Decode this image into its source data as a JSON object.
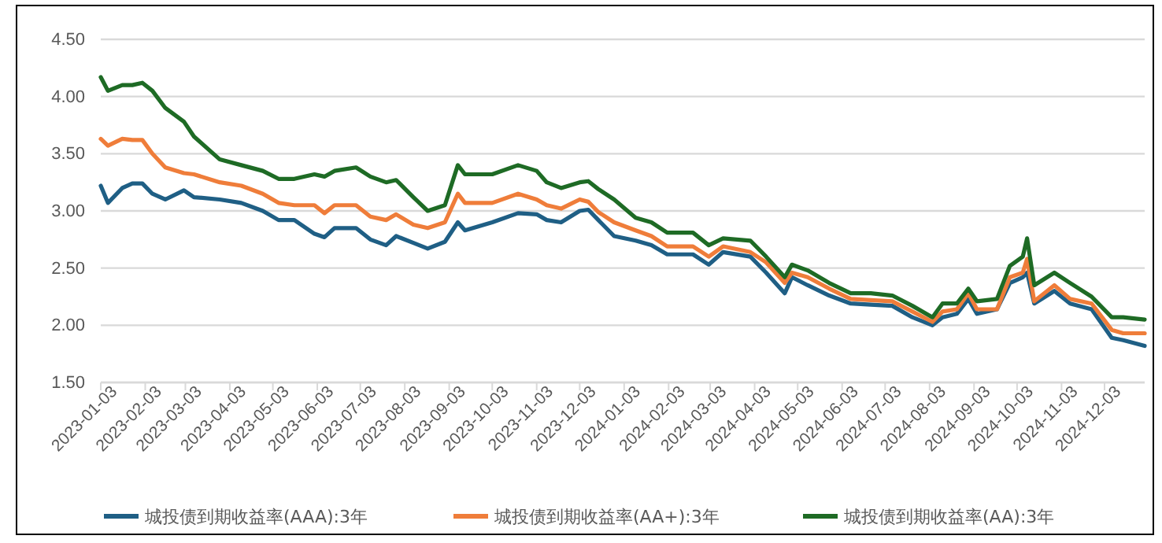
{
  "chart_data": {
    "type": "line",
    "x": [
      "2023-01-03",
      "2023-01-08",
      "2023-01-18",
      "2023-01-25",
      "2023-02-01",
      "2023-02-08",
      "2023-02-17",
      "2023-03-02",
      "2023-03-09",
      "2023-03-27",
      "2023-04-11",
      "2023-04-26",
      "2023-05-07",
      "2023-05-18",
      "2023-06-01",
      "2023-06-08",
      "2023-06-15",
      "2023-06-30",
      "2023-07-10",
      "2023-07-21",
      "2023-07-28",
      "2023-08-09",
      "2023-08-19",
      "2023-08-31",
      "2023-09-09",
      "2023-09-14",
      "2023-10-03",
      "2023-10-21",
      "2023-11-03",
      "2023-11-10",
      "2023-11-20",
      "2023-12-03",
      "2023-12-09",
      "2023-12-16",
      "2023-12-27",
      "2024-01-11",
      "2024-01-22",
      "2024-02-02",
      "2024-02-20",
      "2024-03-02",
      "2024-03-12",
      "2024-03-31",
      "2024-04-11",
      "2024-04-24",
      "2024-04-29",
      "2024-05-10",
      "2024-05-25",
      "2024-06-09",
      "2024-06-23",
      "2024-07-08",
      "2024-07-22",
      "2024-08-05",
      "2024-08-12",
      "2024-08-22",
      "2024-08-30",
      "2024-09-05",
      "2024-09-19",
      "2024-09-28",
      "2024-10-07",
      "2024-10-10",
      "2024-10-15",
      "2024-10-29",
      "2024-11-09",
      "2024-11-24",
      "2024-12-08",
      "2024-12-16",
      "2024-12-31"
    ],
    "series": [
      {
        "name": "城投债到期收益率(AAA):3年",
        "color": "#1f5f85",
        "values": [
          3.22,
          3.07,
          3.2,
          3.24,
          3.24,
          3.15,
          3.1,
          3.18,
          3.12,
          3.1,
          3.07,
          3.0,
          2.92,
          2.92,
          2.8,
          2.77,
          2.85,
          2.85,
          2.75,
          2.7,
          2.78,
          2.72,
          2.67,
          2.73,
          2.9,
          2.83,
          2.9,
          2.98,
          2.97,
          2.92,
          2.9,
          3.0,
          3.01,
          2.92,
          2.78,
          2.74,
          2.7,
          2.62,
          2.62,
          2.53,
          2.64,
          2.6,
          2.46,
          2.28,
          2.42,
          2.35,
          2.26,
          2.19,
          2.18,
          2.17,
          2.07,
          2.0,
          2.07,
          2.1,
          2.23,
          2.1,
          2.14,
          2.37,
          2.42,
          2.46,
          2.19,
          2.3,
          2.19,
          2.14,
          1.89,
          1.87,
          1.82
        ]
      },
      {
        "name": "城投债到期收益率(AA+):3年",
        "color": "#ef7d3a",
        "values": [
          3.63,
          3.57,
          3.63,
          3.62,
          3.62,
          3.5,
          3.38,
          3.33,
          3.32,
          3.25,
          3.22,
          3.15,
          3.07,
          3.05,
          3.05,
          2.98,
          3.05,
          3.05,
          2.95,
          2.92,
          2.97,
          2.88,
          2.85,
          2.9,
          3.15,
          3.07,
          3.07,
          3.15,
          3.1,
          3.05,
          3.02,
          3.1,
          3.08,
          2.99,
          2.9,
          2.83,
          2.78,
          2.69,
          2.69,
          2.6,
          2.69,
          2.64,
          2.55,
          2.37,
          2.46,
          2.42,
          2.32,
          2.23,
          2.22,
          2.21,
          2.12,
          2.03,
          2.12,
          2.14,
          2.28,
          2.14,
          2.14,
          2.42,
          2.46,
          2.58,
          2.21,
          2.35,
          2.23,
          2.19,
          1.96,
          1.93,
          1.93
        ]
      },
      {
        "name": "城投债到期收益率(AA):3年",
        "color": "#1e6b25",
        "values": [
          4.17,
          4.05,
          4.1,
          4.1,
          4.12,
          4.05,
          3.9,
          3.78,
          3.65,
          3.45,
          3.4,
          3.35,
          3.28,
          3.28,
          3.32,
          3.3,
          3.35,
          3.38,
          3.3,
          3.25,
          3.27,
          3.12,
          3.0,
          3.05,
          3.4,
          3.32,
          3.32,
          3.4,
          3.35,
          3.25,
          3.2,
          3.25,
          3.26,
          3.19,
          3.1,
          2.94,
          2.9,
          2.81,
          2.81,
          2.7,
          2.76,
          2.74,
          2.6,
          2.42,
          2.53,
          2.48,
          2.37,
          2.28,
          2.28,
          2.26,
          2.17,
          2.07,
          2.19,
          2.19,
          2.32,
          2.21,
          2.23,
          2.52,
          2.6,
          2.76,
          2.35,
          2.46,
          2.37,
          2.25,
          2.07,
          2.07,
          2.05
        ]
      }
    ],
    "xlim": [
      "2023-01-03",
      "2024-12-31"
    ],
    "xticks": [
      "2023-01-03",
      "2023-02-03",
      "2023-03-03",
      "2023-04-03",
      "2023-05-03",
      "2023-06-03",
      "2023-07-03",
      "2023-08-03",
      "2023-09-03",
      "2023-10-03",
      "2023-11-03",
      "2023-12-03",
      "2024-01-03",
      "2024-02-03",
      "2024-03-03",
      "2024-04-03",
      "2024-05-03",
      "2024-06-03",
      "2024-07-03",
      "2024-08-03",
      "2024-09-03",
      "2024-10-03",
      "2024-11-03",
      "2024-12-03"
    ],
    "ylim": [
      1.5,
      4.5
    ],
    "yticks": [
      {
        "value": 1.5,
        "label": "1.50"
      },
      {
        "value": 2,
        "label": "2.00"
      },
      {
        "value": 2.5,
        "label": "2.50"
      },
      {
        "value": 3,
        "label": "3.00"
      },
      {
        "value": 3.5,
        "label": "3.50"
      },
      {
        "value": 4,
        "label": "4.00"
      },
      {
        "value": 4.5,
        "label": "4.50"
      }
    ],
    "grid": "y",
    "legend": "bottom",
    "marker": "none",
    "line_style": "solid"
  }
}
